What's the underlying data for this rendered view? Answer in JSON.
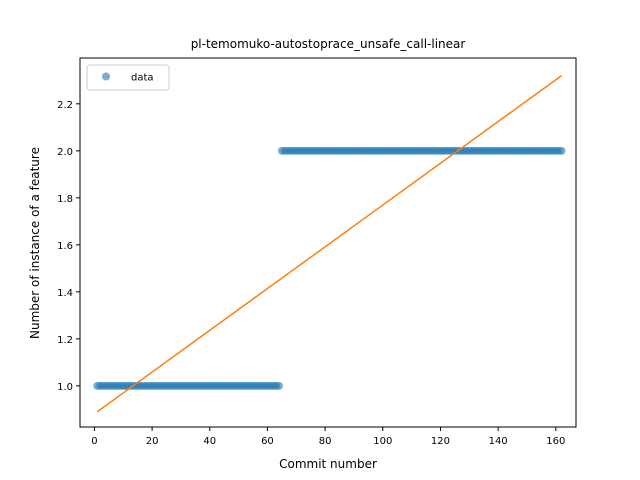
{
  "chart_data": {
    "type": "scatter",
    "title": "pl-temomuko-autostoprace_unsafe_call-linear",
    "xlabel": "Commit number",
    "ylabel": "Number of instance of a feature",
    "xlim": [
      -5,
      167
    ],
    "ylim": [
      0.825,
      2.395
    ],
    "xticks": [
      0,
      20,
      40,
      60,
      80,
      100,
      120,
      140,
      160
    ],
    "xtick_labels": [
      "0",
      "20",
      "40",
      "60",
      "80",
      "100",
      "120",
      "140",
      "160"
    ],
    "yticks": [
      1.0,
      1.2,
      1.4,
      1.6,
      1.8,
      2.0,
      2.2
    ],
    "ytick_labels": [
      "1.0",
      "1.2",
      "1.4",
      "1.6",
      "1.8",
      "2.0",
      "2.2"
    ],
    "grid": false,
    "legend": {
      "placement": "top-left",
      "entries": [
        "data"
      ]
    },
    "series": [
      {
        "name": "data",
        "kind": "points",
        "color": "#1f77b4",
        "segments": [
          {
            "x_start": 1,
            "x_end": 64,
            "y": 1
          },
          {
            "x_start": 65,
            "x_end": 162,
            "y": 2
          }
        ]
      },
      {
        "kind": "line",
        "color": "#ff7f0e",
        "x": [
          1,
          162
        ],
        "y": [
          0.89,
          2.32
        ]
      }
    ]
  }
}
